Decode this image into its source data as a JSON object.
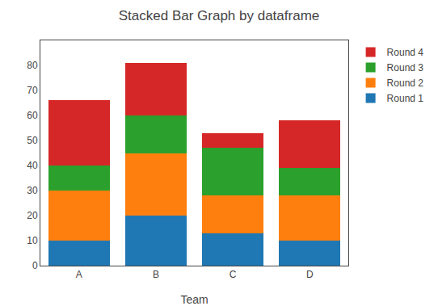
{
  "chart_data": {
    "type": "bar",
    "stacked": true,
    "title": "Stacked Bar Graph by dataframe",
    "xlabel": "Team",
    "categories": [
      "A",
      "B",
      "C",
      "D"
    ],
    "series": [
      {
        "name": "Round 1",
        "color": "#1f77b4",
        "values": [
          10,
          20,
          13,
          10
        ]
      },
      {
        "name": "Round 2",
        "color": "#ff7f0e",
        "values": [
          20,
          25,
          15,
          18
        ]
      },
      {
        "name": "Round 3",
        "color": "#2ca02c",
        "values": [
          10,
          15,
          19,
          11
        ]
      },
      {
        "name": "Round 4",
        "color": "#d62728",
        "values": [
          26,
          21,
          6,
          19
        ]
      }
    ],
    "ylim": [
      0,
      90
    ],
    "yticks": [
      0,
      10,
      20,
      30,
      40,
      50,
      60,
      70,
      80
    ],
    "grid": false,
    "legend": "upper right"
  }
}
